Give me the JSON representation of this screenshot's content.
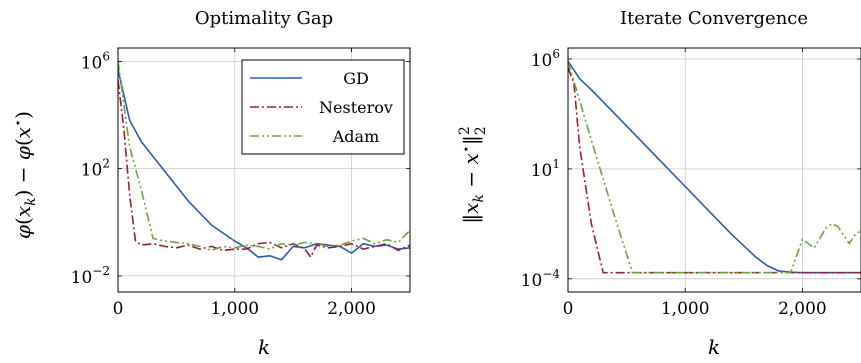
{
  "chart_data": [
    {
      "type": "line",
      "title": "Optimality Gap",
      "xlabel": "k",
      "ylabel": "φ(x_k) − φ(x⋆)",
      "yscale": "log",
      "xlim": [
        0,
        2500
      ],
      "ylim_log10": [
        -2.6,
        6.5
      ],
      "grid": true,
      "legend_position": "top-right",
      "x_ticks": [
        {
          "value": 0,
          "label": "0"
        },
        {
          "value": 1000,
          "label": "1,000"
        },
        {
          "value": 2000,
          "label": "2,000"
        }
      ],
      "y_ticks": [
        {
          "log10": 6,
          "base": "10",
          "exp": "6"
        },
        {
          "log10": 2,
          "base": "10",
          "exp": "2"
        },
        {
          "log10": -2,
          "base": "10",
          "exp": "−2"
        }
      ],
      "series": [
        {
          "name": "GD",
          "color": "#2a5caa",
          "style": "solid",
          "x": [
            0,
            100,
            200,
            400,
            600,
            800,
            1000,
            1100,
            1200,
            1300,
            1400,
            1500,
            1600,
            1700,
            1800,
            1900,
            2000,
            2100,
            2200,
            2300,
            2400,
            2500
          ],
          "log10y": [
            5.7,
            3.8,
            3.0,
            1.9,
            0.8,
            -0.1,
            -0.7,
            -0.95,
            -1.3,
            -1.25,
            -1.4,
            -0.9,
            -0.95,
            -0.8,
            -0.85,
            -0.9,
            -1.15,
            -0.8,
            -0.9,
            -0.85,
            -1.0,
            -0.95
          ]
        },
        {
          "name": "Nesterov",
          "color": "#9b1c3a",
          "style": "dashdot",
          "x": [
            0,
            50,
            100,
            150,
            200,
            300,
            400,
            500,
            600,
            700,
            800,
            900,
            1000,
            1100,
            1200,
            1300,
            1400,
            1500,
            1600,
            1650,
            1700,
            1800,
            1900,
            2000,
            2100,
            2200,
            2300,
            2400,
            2500
          ],
          "log10y": [
            5.3,
            3.5,
            1.0,
            -0.7,
            -0.85,
            -0.8,
            -0.9,
            -0.95,
            -0.85,
            -1.0,
            -0.9,
            -1.05,
            -1.0,
            -1.0,
            -0.8,
            -0.75,
            -0.95,
            -0.8,
            -1.0,
            -1.3,
            -0.85,
            -0.95,
            -0.9,
            -0.8,
            -1.0,
            -0.9,
            -0.8,
            -1.05,
            -0.85
          ]
        },
        {
          "name": "Adam",
          "color": "#6aa53a",
          "style": "dashdotdot",
          "x": [
            0,
            100,
            200,
            300,
            400,
            500,
            600,
            700,
            800,
            900,
            1000,
            1100,
            1200,
            1300,
            1400,
            1500,
            1600,
            1700,
            1800,
            1900,
            2000,
            2100,
            2200,
            2300,
            2400,
            2500
          ],
          "log10y": [
            6.0,
            2.8,
            1.2,
            -0.6,
            -0.7,
            -0.75,
            -0.8,
            -0.9,
            -1.05,
            -0.9,
            -0.95,
            -0.85,
            -0.9,
            -1.0,
            -0.8,
            -0.85,
            -0.75,
            -0.8,
            -0.9,
            -0.85,
            -0.7,
            -0.6,
            -0.8,
            -0.65,
            -0.75,
            -0.3
          ]
        }
      ]
    },
    {
      "type": "line",
      "title": "Iterate Convergence",
      "xlabel": "k",
      "ylabel": "‖x_k − x⋆‖₂²",
      "yscale": "log",
      "xlim": [
        0,
        2500
      ],
      "ylim_log10": [
        -4.6,
        6.5
      ],
      "grid": true,
      "x_ticks": [
        {
          "value": 0,
          "label": "0"
        },
        {
          "value": 1000,
          "label": "1,000"
        },
        {
          "value": 2000,
          "label": "2,000"
        }
      ],
      "y_ticks": [
        {
          "log10": 6,
          "base": "10",
          "exp": "6"
        },
        {
          "log10": 1,
          "base": "10",
          "exp": "1"
        },
        {
          "log10": -4,
          "base": "10",
          "exp": "−4"
        }
      ],
      "series": [
        {
          "name": "GD",
          "color": "#2a5caa",
          "style": "solid",
          "x": [
            0,
            100,
            200,
            400,
            600,
            800,
            1000,
            1200,
            1400,
            1600,
            1700,
            1800,
            1900,
            2000,
            2500
          ],
          "log10y": [
            5.9,
            5.1,
            4.6,
            3.5,
            2.4,
            1.3,
            0.2,
            -0.9,
            -2.0,
            -3.0,
            -3.4,
            -3.65,
            -3.7,
            -3.72,
            -3.72
          ]
        },
        {
          "name": "Nesterov",
          "color": "#9b1c3a",
          "style": "dashdot",
          "x": [
            0,
            50,
            100,
            200,
            300,
            2500
          ],
          "log10y": [
            5.6,
            4.9,
            2.0,
            -1.5,
            -3.72,
            -3.72
          ]
        },
        {
          "name": "Adam",
          "color": "#6aa53a",
          "style": "dashdotdot",
          "x": [
            0,
            200,
            400,
            550,
            600,
            1900,
            2000,
            2100,
            2200,
            2250,
            2300,
            2400,
            2450,
            2500
          ],
          "log10y": [
            5.9,
            2.3,
            -1.2,
            -3.72,
            -3.72,
            -3.72,
            -2.2,
            -2.6,
            -1.7,
            -1.5,
            -1.6,
            -2.4,
            -2.0,
            -1.8
          ]
        }
      ]
    }
  ]
}
